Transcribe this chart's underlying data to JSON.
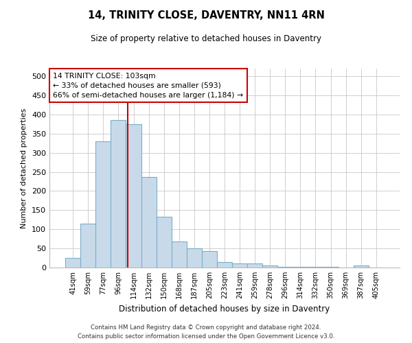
{
  "title_line1": "14, TRINITY CLOSE, DAVENTRY, NN11 4RN",
  "title_line2": "Size of property relative to detached houses in Daventry",
  "xlabel": "Distribution of detached houses by size in Daventry",
  "ylabel": "Number of detached properties",
  "categories": [
    "41sqm",
    "59sqm",
    "77sqm",
    "96sqm",
    "114sqm",
    "132sqm",
    "150sqm",
    "168sqm",
    "187sqm",
    "205sqm",
    "223sqm",
    "241sqm",
    "259sqm",
    "278sqm",
    "296sqm",
    "314sqm",
    "332sqm",
    "350sqm",
    "369sqm",
    "387sqm",
    "405sqm"
  ],
  "values": [
    26,
    115,
    330,
    385,
    375,
    237,
    133,
    68,
    50,
    43,
    15,
    10,
    10,
    5,
    2,
    1,
    1,
    1,
    0,
    5,
    0
  ],
  "bar_color": "#c8daea",
  "bar_edge_color": "#7aafc8",
  "vline_color": "#cc0000",
  "vline_x_index": 3.62,
  "annotation_text_line1": "14 TRINITY CLOSE: 103sqm",
  "annotation_text_line2": "← 33% of detached houses are smaller (593)",
  "annotation_text_line3": "66% of semi-detached houses are larger (1,184) →",
  "annotation_box_color": "#ffffff",
  "annotation_box_edge_color": "#cc0000",
  "ylim": [
    0,
    520
  ],
  "yticks": [
    0,
    50,
    100,
    150,
    200,
    250,
    300,
    350,
    400,
    450,
    500
  ],
  "footnote1": "Contains HM Land Registry data © Crown copyright and database right 2024.",
  "footnote2": "Contains public sector information licensed under the Open Government Licence v3.0.",
  "background_color": "#ffffff",
  "grid_color": "#c8c8c8"
}
